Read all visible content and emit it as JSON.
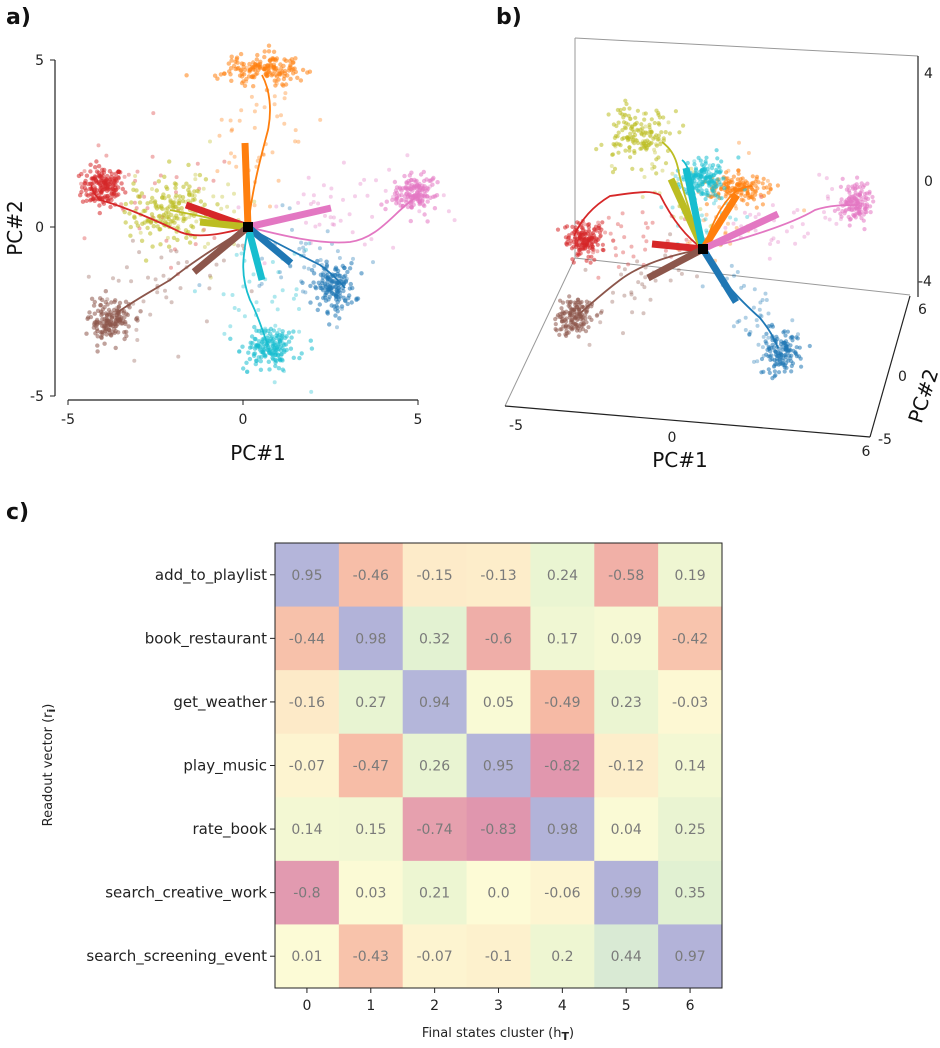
{
  "chart_data": [
    {
      "panel": "a)",
      "type": "scatter",
      "xlabel": "PC#1",
      "ylabel": "PC#2",
      "xlim": [
        -5,
        5
      ],
      "ylim": [
        -5,
        5
      ],
      "xticks": [
        "-5",
        "0",
        "5"
      ],
      "yticks": [
        "5",
        "0",
        "-5"
      ],
      "clusters": [
        {
          "cluster": "0",
          "color": "#d62728",
          "center": [
            -4.0,
            1.2
          ],
          "spread": [
            0.3,
            0.3
          ],
          "n": 170
        },
        {
          "cluster": "1",
          "color": "#bcbd22",
          "center": [
            -2.2,
            0.5
          ],
          "spread": [
            0.55,
            0.45
          ],
          "n": 160
        },
        {
          "cluster": "2",
          "color": "#ff7f0e",
          "center": [
            0.6,
            4.7
          ],
          "spread": [
            0.55,
            0.22
          ],
          "n": 160
        },
        {
          "cluster": "3",
          "color": "#e377c2",
          "center": [
            4.9,
            1.0
          ],
          "spread": [
            0.28,
            0.3
          ],
          "n": 150
        },
        {
          "cluster": "4",
          "color": "#1f77b4",
          "center": [
            2.6,
            -1.8
          ],
          "spread": [
            0.3,
            0.35
          ],
          "n": 150
        },
        {
          "cluster": "5",
          "color": "#17becf",
          "center": [
            0.8,
            -3.6
          ],
          "spread": [
            0.35,
            0.3
          ],
          "n": 160
        },
        {
          "cluster": "6",
          "color": "#8c564b",
          "center": [
            -3.8,
            -2.8
          ],
          "spread": [
            0.3,
            0.3
          ],
          "n": 160
        }
      ]
    },
    {
      "panel": "b)",
      "type": "scatter",
      "projection": "3d",
      "xlabel": "PC#1",
      "zlabel": "PC#2",
      "xticks": [
        "-5",
        "0",
        "6"
      ],
      "yticks": [
        "4",
        "0",
        "-4"
      ],
      "zticks": [
        "6",
        "0",
        "-5"
      ]
    },
    {
      "panel": "c)",
      "type": "heatmap",
      "xlabel": "Final states cluster (h",
      "xlabel_sub": "T",
      "xlabel_tail": ")",
      "ylabel": "Readout vector (r",
      "ylabel_sub": "i",
      "ylabel_tail": ")",
      "columns": [
        "0",
        "1",
        "2",
        "3",
        "4",
        "5",
        "6"
      ],
      "rows": [
        "add_to_playlist",
        "book_restaurant",
        "get_weather",
        "play_music",
        "rate_book",
        "search_creative_work",
        "search_screening_event"
      ],
      "values": [
        [
          0.95,
          -0.46,
          -0.15,
          -0.13,
          0.24,
          -0.58,
          0.19
        ],
        [
          -0.44,
          0.98,
          0.32,
          -0.6,
          0.17,
          0.09,
          -0.42
        ],
        [
          -0.16,
          0.27,
          0.94,
          0.05,
          -0.49,
          0.23,
          -0.03
        ],
        [
          -0.07,
          -0.47,
          0.26,
          0.95,
          -0.82,
          -0.12,
          0.14
        ],
        [
          0.14,
          0.15,
          -0.74,
          -0.83,
          0.98,
          0.04,
          0.25
        ],
        [
          -0.8,
          0.03,
          0.21,
          0.0,
          -0.06,
          0.99,
          0.35
        ],
        [
          0.01,
          -0.43,
          -0.07,
          -0.1,
          0.2,
          0.44,
          0.97
        ]
      ],
      "labels": [
        [
          "0.95",
          "-0.46",
          "-0.15",
          "-0.13",
          "0.24",
          "-0.58",
          "0.19"
        ],
        [
          "-0.44",
          "0.98",
          "0.32",
          "-0.6",
          "0.17",
          "0.09",
          "-0.42"
        ],
        [
          "-0.16",
          "0.27",
          "0.94",
          "0.05",
          "-0.49",
          "0.23",
          "-0.03"
        ],
        [
          "-0.07",
          "-0.47",
          "0.26",
          "0.95",
          "-0.82",
          "-0.12",
          "0.14"
        ],
        [
          "0.14",
          "0.15",
          "-0.74",
          "-0.83",
          "0.98",
          "0.04",
          "0.25"
        ],
        [
          "-0.8",
          "0.03",
          "0.21",
          "0.0",
          "-0.06",
          "0.99",
          "0.35"
        ],
        [
          "0.01",
          "-0.43",
          "-0.07",
          "-0.1",
          "0.2",
          "0.44",
          "0.97"
        ]
      ],
      "colormap": "Spectral"
    }
  ]
}
